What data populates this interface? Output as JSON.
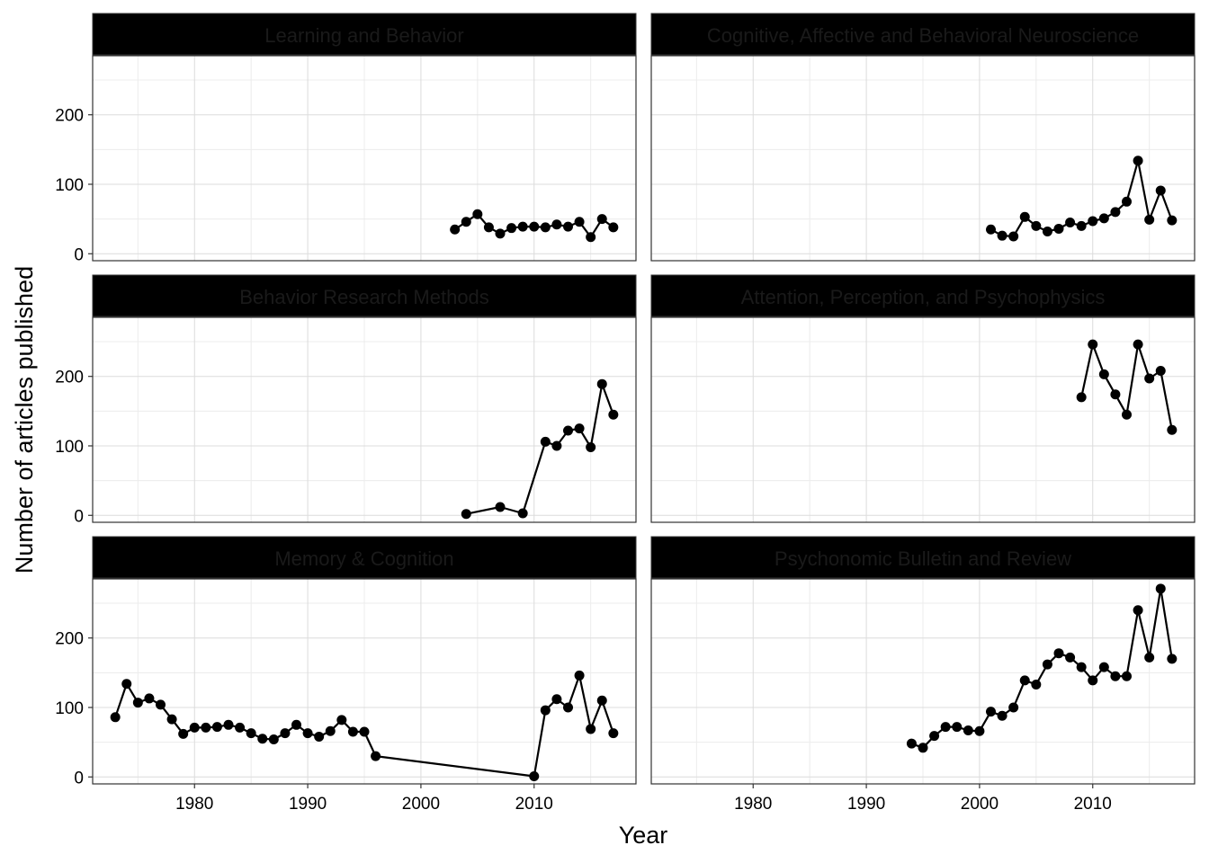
{
  "chart_data": {
    "type": "line",
    "facet_layout": "3 rows x 2 columns, shared axes",
    "xlabel": "Year",
    "ylabel": "Number of articles published",
    "xlim": [
      1971,
      2019
    ],
    "ylim": [
      -10,
      285
    ],
    "x_ticks": [
      1980,
      1990,
      2000,
      2010
    ],
    "y_ticks": [
      0,
      100,
      200
    ],
    "grid": true,
    "point_color": "#000000",
    "line_color": "#000000",
    "strip_fill": "#000000",
    "panels": [
      {
        "title": "Learning and Behavior",
        "x": [
          2003,
          2004,
          2005,
          2006,
          2007,
          2008,
          2009,
          2010,
          2011,
          2012,
          2013,
          2014,
          2015,
          2016,
          2017
        ],
        "values": [
          35,
          46,
          57,
          38,
          29,
          37,
          39,
          39,
          38,
          42,
          39,
          46,
          24,
          50,
          38
        ]
      },
      {
        "title": "Cognitive, Affective and Behavioral Neuroscience",
        "x": [
          2001,
          2002,
          2003,
          2004,
          2005,
          2006,
          2007,
          2008,
          2009,
          2010,
          2011,
          2012,
          2013,
          2014,
          2015,
          2016,
          2017
        ],
        "values": [
          35,
          26,
          25,
          53,
          40,
          32,
          36,
          45,
          40,
          47,
          51,
          60,
          75,
          134,
          49,
          91,
          48
        ]
      },
      {
        "title": "Behavior Research Methods",
        "x": [
          2004,
          2007,
          2009,
          2011,
          2012,
          2013,
          2014,
          2015,
          2016,
          2017
        ],
        "values": [
          2,
          12,
          3,
          106,
          100,
          122,
          125,
          98,
          189,
          145
        ]
      },
      {
        "title": "Attention, Perception, and Psychophysics",
        "x": [
          2009,
          2010,
          2011,
          2012,
          2013,
          2014,
          2015,
          2016,
          2017
        ],
        "values": [
          170,
          246,
          203,
          174,
          145,
          246,
          197,
          208,
          123
        ]
      },
      {
        "title": "Memory & Cognition",
        "x": [
          1973,
          1974,
          1975,
          1976,
          1977,
          1978,
          1979,
          1980,
          1981,
          1982,
          1983,
          1984,
          1985,
          1986,
          1987,
          1988,
          1989,
          1990,
          1991,
          1992,
          1993,
          1994,
          1995,
          1996,
          2010,
          2011,
          2012,
          2013,
          2014,
          2015,
          2016,
          2017
        ],
        "values": [
          86,
          134,
          107,
          113,
          104,
          83,
          62,
          71,
          71,
          72,
          75,
          71,
          63,
          55,
          54,
          63,
          75,
          63,
          58,
          66,
          82,
          65,
          65,
          30,
          1,
          96,
          112,
          100,
          146,
          69,
          110,
          63
        ]
      },
      {
        "title": "Psychonomic Bulletin and Review",
        "x": [
          1994,
          1995,
          1996,
          1997,
          1998,
          1999,
          2000,
          2001,
          2002,
          2003,
          2004,
          2005,
          2006,
          2007,
          2008,
          2009,
          2010,
          2011,
          2012,
          2013,
          2014,
          2015,
          2016,
          2017
        ],
        "values": [
          48,
          42,
          59,
          72,
          72,
          67,
          66,
          94,
          88,
          100,
          139,
          133,
          162,
          178,
          172,
          158,
          139,
          158,
          145,
          145,
          240,
          172,
          271,
          170
        ]
      }
    ]
  }
}
